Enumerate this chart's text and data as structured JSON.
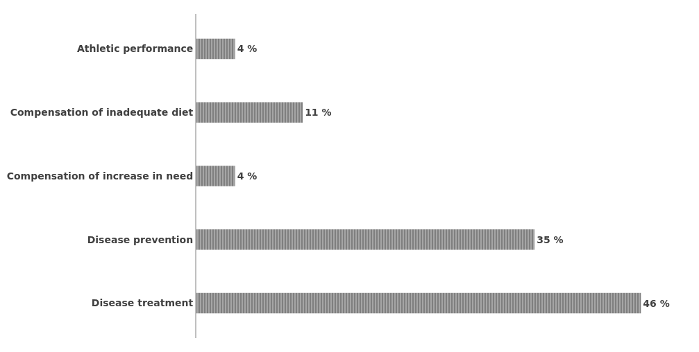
{
  "chart_data": {
    "type": "bar",
    "orientation": "horizontal",
    "categories": [
      "Athletic performance",
      "Compensation of inadequate diet",
      "Compensation of increase in need",
      "Disease prevention",
      "Disease treatment"
    ],
    "values": [
      4,
      11,
      4,
      35,
      46
    ],
    "value_labels": [
      "4 %",
      "11 %",
      "4 %",
      "35 %",
      "46 %"
    ],
    "color": "#7f7f7f",
    "legend": false
  }
}
